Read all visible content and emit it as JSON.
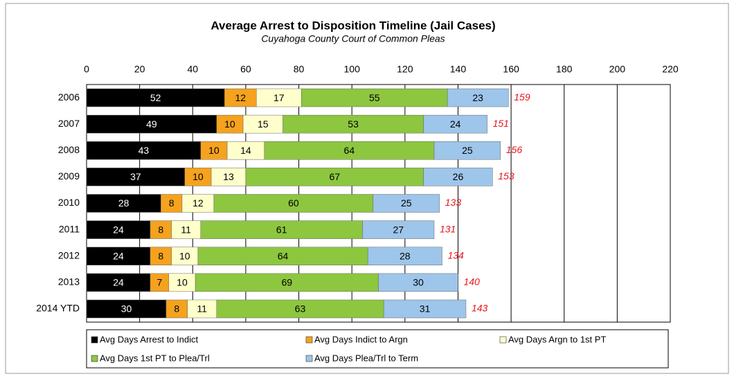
{
  "chart_data": {
    "type": "stacked-bar-horizontal",
    "title": "Average Arrest to Disposition Timeline (Jail Cases)",
    "subtitle": "Cuyahoga County Court of Common Pleas",
    "categories": [
      "2006",
      "2007",
      "2008",
      "2009",
      "2010",
      "2011",
      "2012",
      "2013",
      "2014 YTD"
    ],
    "series": [
      {
        "name": "Avg Days Arrest to Indict",
        "color": "#000000",
        "values": [
          52,
          49,
          43,
          37,
          28,
          24,
          24,
          24,
          30
        ]
      },
      {
        "name": "Avg Days Indict to Argn",
        "color": "#f5a21e",
        "values": [
          12,
          10,
          10,
          10,
          8,
          8,
          8,
          7,
          8
        ]
      },
      {
        "name": "Avg Days Argn to 1st PT",
        "color": "#ffffcc",
        "values": [
          17,
          15,
          14,
          13,
          12,
          11,
          10,
          10,
          11
        ]
      },
      {
        "name": "Avg Days 1st PT to Plea/Trl",
        "color": "#8dc63f",
        "values": [
          55,
          53,
          64,
          67,
          60,
          61,
          64,
          69,
          63
        ]
      },
      {
        "name": "Avg Days Plea/Trl to Term",
        "color": "#9ec5ea",
        "values": [
          23,
          24,
          25,
          26,
          25,
          27,
          28,
          30,
          31
        ]
      }
    ],
    "totals": [
      159,
      151,
      156,
      153,
      133,
      131,
      134,
      140,
      143
    ],
    "totals_color": "#e8131a",
    "xlim": [
      0,
      220
    ],
    "xticks": [
      0,
      20,
      40,
      60,
      80,
      100,
      120,
      140,
      160,
      180,
      200,
      220
    ],
    "grid": true
  }
}
